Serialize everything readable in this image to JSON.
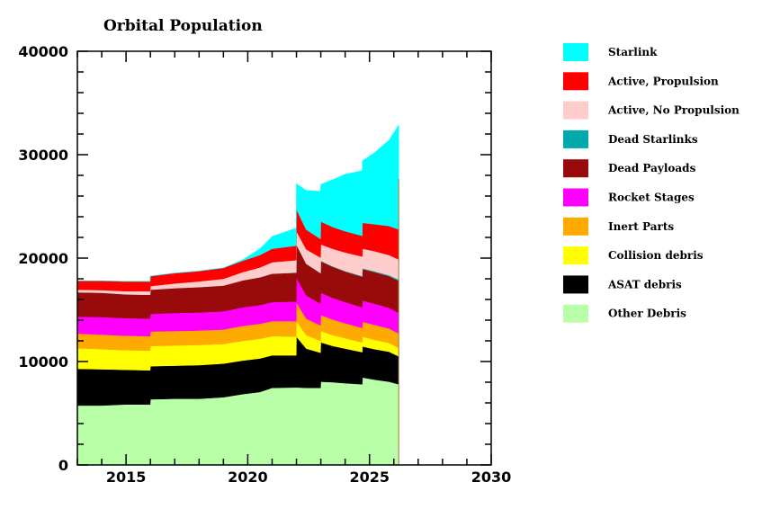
{
  "chart_data": {
    "type": "area",
    "stacked": true,
    "title": "Orbital Population",
    "xlabel": "",
    "ylabel": "",
    "xlim": [
      2013,
      2030
    ],
    "ylim": [
      0,
      40000
    ],
    "x_ticks": [
      2015,
      2020,
      2025,
      2030
    ],
    "y_ticks": [
      0,
      10000,
      20000,
      30000,
      40000
    ],
    "x_minor_step": 1,
    "y_minor_step": 2000,
    "grid": false,
    "legend_position": "right",
    "x": [
      2013.0,
      2014.0,
      2015.0,
      2015.99,
      2016.0,
      2017.0,
      2018.0,
      2019.0,
      2019.8,
      2020.5,
      2021.0,
      2021.99,
      2022.0,
      2022.4,
      2022.99,
      2023.0,
      2023.5,
      2024.0,
      2024.7,
      2024.71,
      2025.2,
      2025.8,
      2026.2
    ],
    "series": [
      {
        "name": "Other Debris",
        "color": "#b8ffa8",
        "values": [
          5750,
          5750,
          5850,
          5850,
          6350,
          6400,
          6400,
          6550,
          6850,
          7050,
          7450,
          7500,
          7500,
          7450,
          7450,
          8050,
          8000,
          7900,
          7800,
          8450,
          8250,
          8050,
          7800
        ]
      },
      {
        "name": "ASAT debris",
        "color": "#000000",
        "values": [
          3550,
          3500,
          3350,
          3300,
          3200,
          3200,
          3250,
          3250,
          3250,
          3250,
          3150,
          3100,
          4900,
          3800,
          3400,
          3800,
          3500,
          3350,
          3100,
          3000,
          2950,
          2900,
          2700
        ]
      },
      {
        "name": "Collision debris",
        "color": "#ffff00",
        "values": [
          2000,
          1950,
          1900,
          1900,
          1950,
          1950,
          1950,
          1900,
          1900,
          1900,
          1850,
          1800,
          1500,
          1300,
          1150,
          1100,
          1050,
          1000,
          950,
          950,
          900,
          850,
          800
        ]
      },
      {
        "name": "Inert Parts",
        "color": "#ffaa00",
        "values": [
          1400,
          1400,
          1400,
          1400,
          1400,
          1400,
          1400,
          1400,
          1450,
          1450,
          1450,
          1500,
          1800,
          1600,
          1500,
          1550,
          1500,
          1450,
          1400,
          1450,
          1450,
          1400,
          1400
        ]
      },
      {
        "name": "Rocket Stages",
        "color": "#ff00ff",
        "values": [
          1650,
          1700,
          1700,
          1700,
          1700,
          1750,
          1750,
          1750,
          1800,
          1800,
          1850,
          1900,
          2400,
          2250,
          2100,
          2150,
          2100,
          2050,
          2000,
          2050,
          2050,
          2000,
          2000
        ]
      },
      {
        "name": "Dead Payloads",
        "color": "#990a0a",
        "values": [
          2350,
          2350,
          2300,
          2300,
          2350,
          2400,
          2450,
          2500,
          2600,
          2700,
          2750,
          2800,
          3200,
          3050,
          2950,
          3050,
          3000,
          2950,
          2950,
          3050,
          3050,
          3050,
          3100
        ]
      },
      {
        "name": "Dead Starlinks",
        "color": "#00aaaa",
        "values": [
          0,
          0,
          0,
          0,
          0,
          0,
          0,
          0,
          0,
          0,
          0,
          0,
          0,
          0,
          0,
          30,
          40,
          50,
          60,
          60,
          80,
          100,
          120
        ]
      },
      {
        "name": "Active, No Propulsion",
        "color": "#ffcccc",
        "values": [
          250,
          250,
          300,
          350,
          350,
          450,
          550,
          650,
          800,
          950,
          1100,
          1200,
          1300,
          1400,
          1500,
          1600,
          1700,
          1800,
          1900,
          1900,
          1950,
          1950,
          1950
        ]
      },
      {
        "name": "Active, Propulsion",
        "color": "#ff0000",
        "values": [
          850,
          900,
          950,
          950,
          950,
          1000,
          1000,
          1050,
          1100,
          1200,
          1300,
          1400,
          2100,
          1900,
          1800,
          2200,
          2100,
          2050,
          2000,
          2500,
          2600,
          2800,
          2900
        ]
      },
      {
        "name": "Starlink",
        "color": "#00ffff",
        "values": [
          0,
          0,
          0,
          0,
          0,
          0,
          0,
          0,
          100,
          600,
          1200,
          1700,
          2500,
          3800,
          4600,
          3600,
          4600,
          5500,
          6300,
          6000,
          6900,
          8300,
          10100
        ]
      }
    ],
    "legend": [
      {
        "label": "Starlink",
        "color": "#00ffff"
      },
      {
        "label": "Active, Propulsion",
        "color": "#ff0000"
      },
      {
        "label": "Active, No Propulsion",
        "color": "#ffcccc"
      },
      {
        "label": "Dead Starlinks",
        "color": "#00aaaa"
      },
      {
        "label": "Dead Payloads",
        "color": "#990a0a"
      },
      {
        "label": "Rocket Stages",
        "color": "#ff00ff"
      },
      {
        "label": "Inert Parts",
        "color": "#ffaa00"
      },
      {
        "label": "Collision debris",
        "color": "#ffff00"
      },
      {
        "label": "ASAT debris",
        "color": "#000000"
      },
      {
        "label": "Other Debris",
        "color": "#b8ffa8"
      }
    ]
  }
}
